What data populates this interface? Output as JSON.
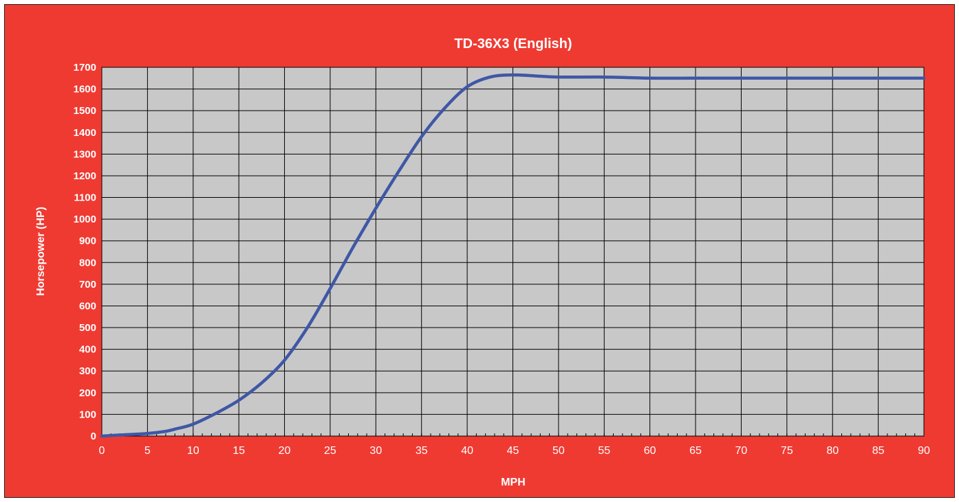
{
  "chart_data": {
    "type": "line",
    "title": "TD-36X3 (English)",
    "xlabel": "MPH",
    "ylabel": "Horsepower (HP)",
    "xlim": [
      0,
      90
    ],
    "ylim": [
      0,
      1700
    ],
    "x_ticks": [
      0,
      5,
      10,
      15,
      20,
      25,
      30,
      35,
      40,
      45,
      50,
      55,
      60,
      65,
      70,
      75,
      80,
      85,
      90
    ],
    "y_ticks": [
      0,
      100,
      200,
      300,
      400,
      500,
      600,
      700,
      800,
      900,
      1000,
      1100,
      1200,
      1300,
      1400,
      1500,
      1600,
      1700
    ],
    "grid": true,
    "legend": "none",
    "colors": {
      "background": "#ef3a32",
      "plot_area": "#c8c8c8",
      "line": "#3f57a6",
      "grid": "#000000",
      "text": "#ffffff"
    },
    "series": [
      {
        "x": [
          0,
          2,
          5,
          7,
          8,
          10,
          12.5,
          15,
          17.5,
          20,
          22.5,
          25,
          27.5,
          30,
          32.5,
          35,
          37.5,
          40,
          42.5,
          45,
          47.5,
          50,
          55,
          60,
          65,
          70,
          75,
          80,
          85,
          90
        ],
        "y": [
          0,
          5,
          12,
          22,
          32,
          55,
          105,
          165,
          245,
          350,
          500,
          680,
          870,
          1050,
          1220,
          1380,
          1510,
          1610,
          1655,
          1665,
          1660,
          1655,
          1655,
          1650,
          1650,
          1650,
          1650,
          1650,
          1650,
          1650
        ]
      }
    ]
  }
}
